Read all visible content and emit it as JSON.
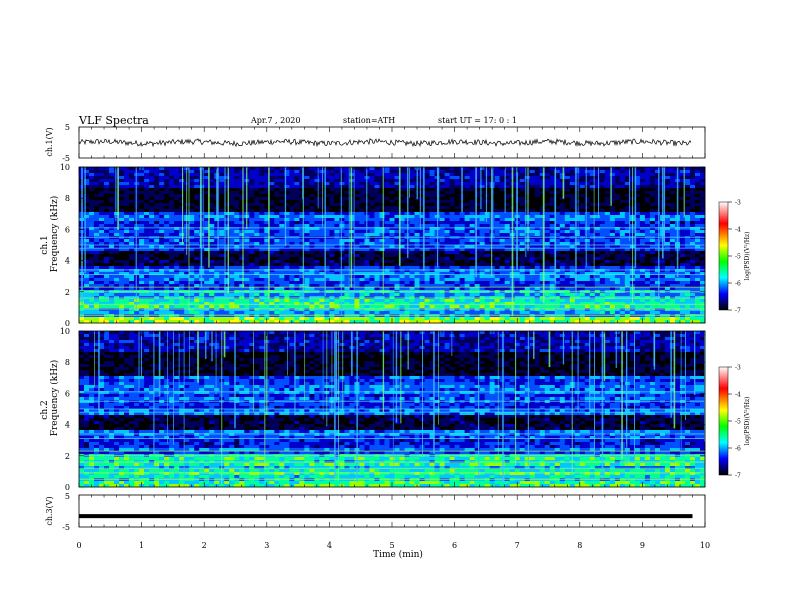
{
  "header": {
    "title": "VLF  Spectra",
    "date": "Apr.7  , 2020",
    "station": "station=ATH",
    "start": "start  UT  =   17: 0   : 1"
  },
  "chart_data": [
    {
      "type": "line",
      "id": "ch1-waveform",
      "ylabel": "ch.1(V)",
      "ylim": [
        -5,
        5
      ],
      "yticks": [
        "5",
        "-5"
      ],
      "description_of_signal": "noisy trace around 0 V with amplitude about +/-1 V"
    },
    {
      "type": "heatmap",
      "id": "ch1-spectrogram",
      "ylabel_lines": [
        "ch.1",
        "Frequency  (kHz)"
      ],
      "ylim": [
        0,
        10
      ],
      "yticks": [
        "0",
        "2",
        "4",
        "6",
        "8",
        "10"
      ],
      "colorbar": {
        "label": "log(PSD)(V²/Hz)",
        "range": [
          -7,
          -3
        ],
        "ticks": [
          "-3",
          "-4",
          "-5",
          "-6",
          "-7"
        ],
        "colors": [
          "#ffffff",
          "#ff0000",
          "#ffff00",
          "#00ff00",
          "#00ffff",
          "#0000ff",
          "#000000"
        ]
      }
    },
    {
      "type": "heatmap",
      "id": "ch2-spectrogram",
      "ylabel_lines": [
        "ch.2",
        "Frequency  (kHz)"
      ],
      "ylim": [
        0,
        10
      ],
      "yticks": [
        "0",
        "2",
        "4",
        "6",
        "8",
        "10"
      ],
      "colorbar": {
        "label": "log(PSD)(V²/Hz)",
        "range": [
          -7,
          -3
        ],
        "ticks": [
          "-3",
          "-4",
          "-5",
          "-6",
          "-7"
        ],
        "colors": [
          "#ffffff",
          "#ff0000",
          "#ffff00",
          "#00ff00",
          "#00ffff",
          "#0000ff",
          "#000000"
        ]
      }
    },
    {
      "type": "line",
      "id": "ch3-waveform",
      "ylabel": "ch.3(V)",
      "ylim": [
        -5,
        5
      ],
      "yticks": [
        "5",
        "-5"
      ],
      "x": [
        0,
        9.8
      ],
      "y": [
        -1.6,
        -1.6
      ]
    }
  ],
  "xaxis": {
    "label": "Time  (min)",
    "range": [
      0,
      10
    ],
    "ticks": [
      "0",
      "1",
      "2",
      "3",
      "4",
      "5",
      "6",
      "7",
      "8",
      "9",
      "10"
    ]
  }
}
